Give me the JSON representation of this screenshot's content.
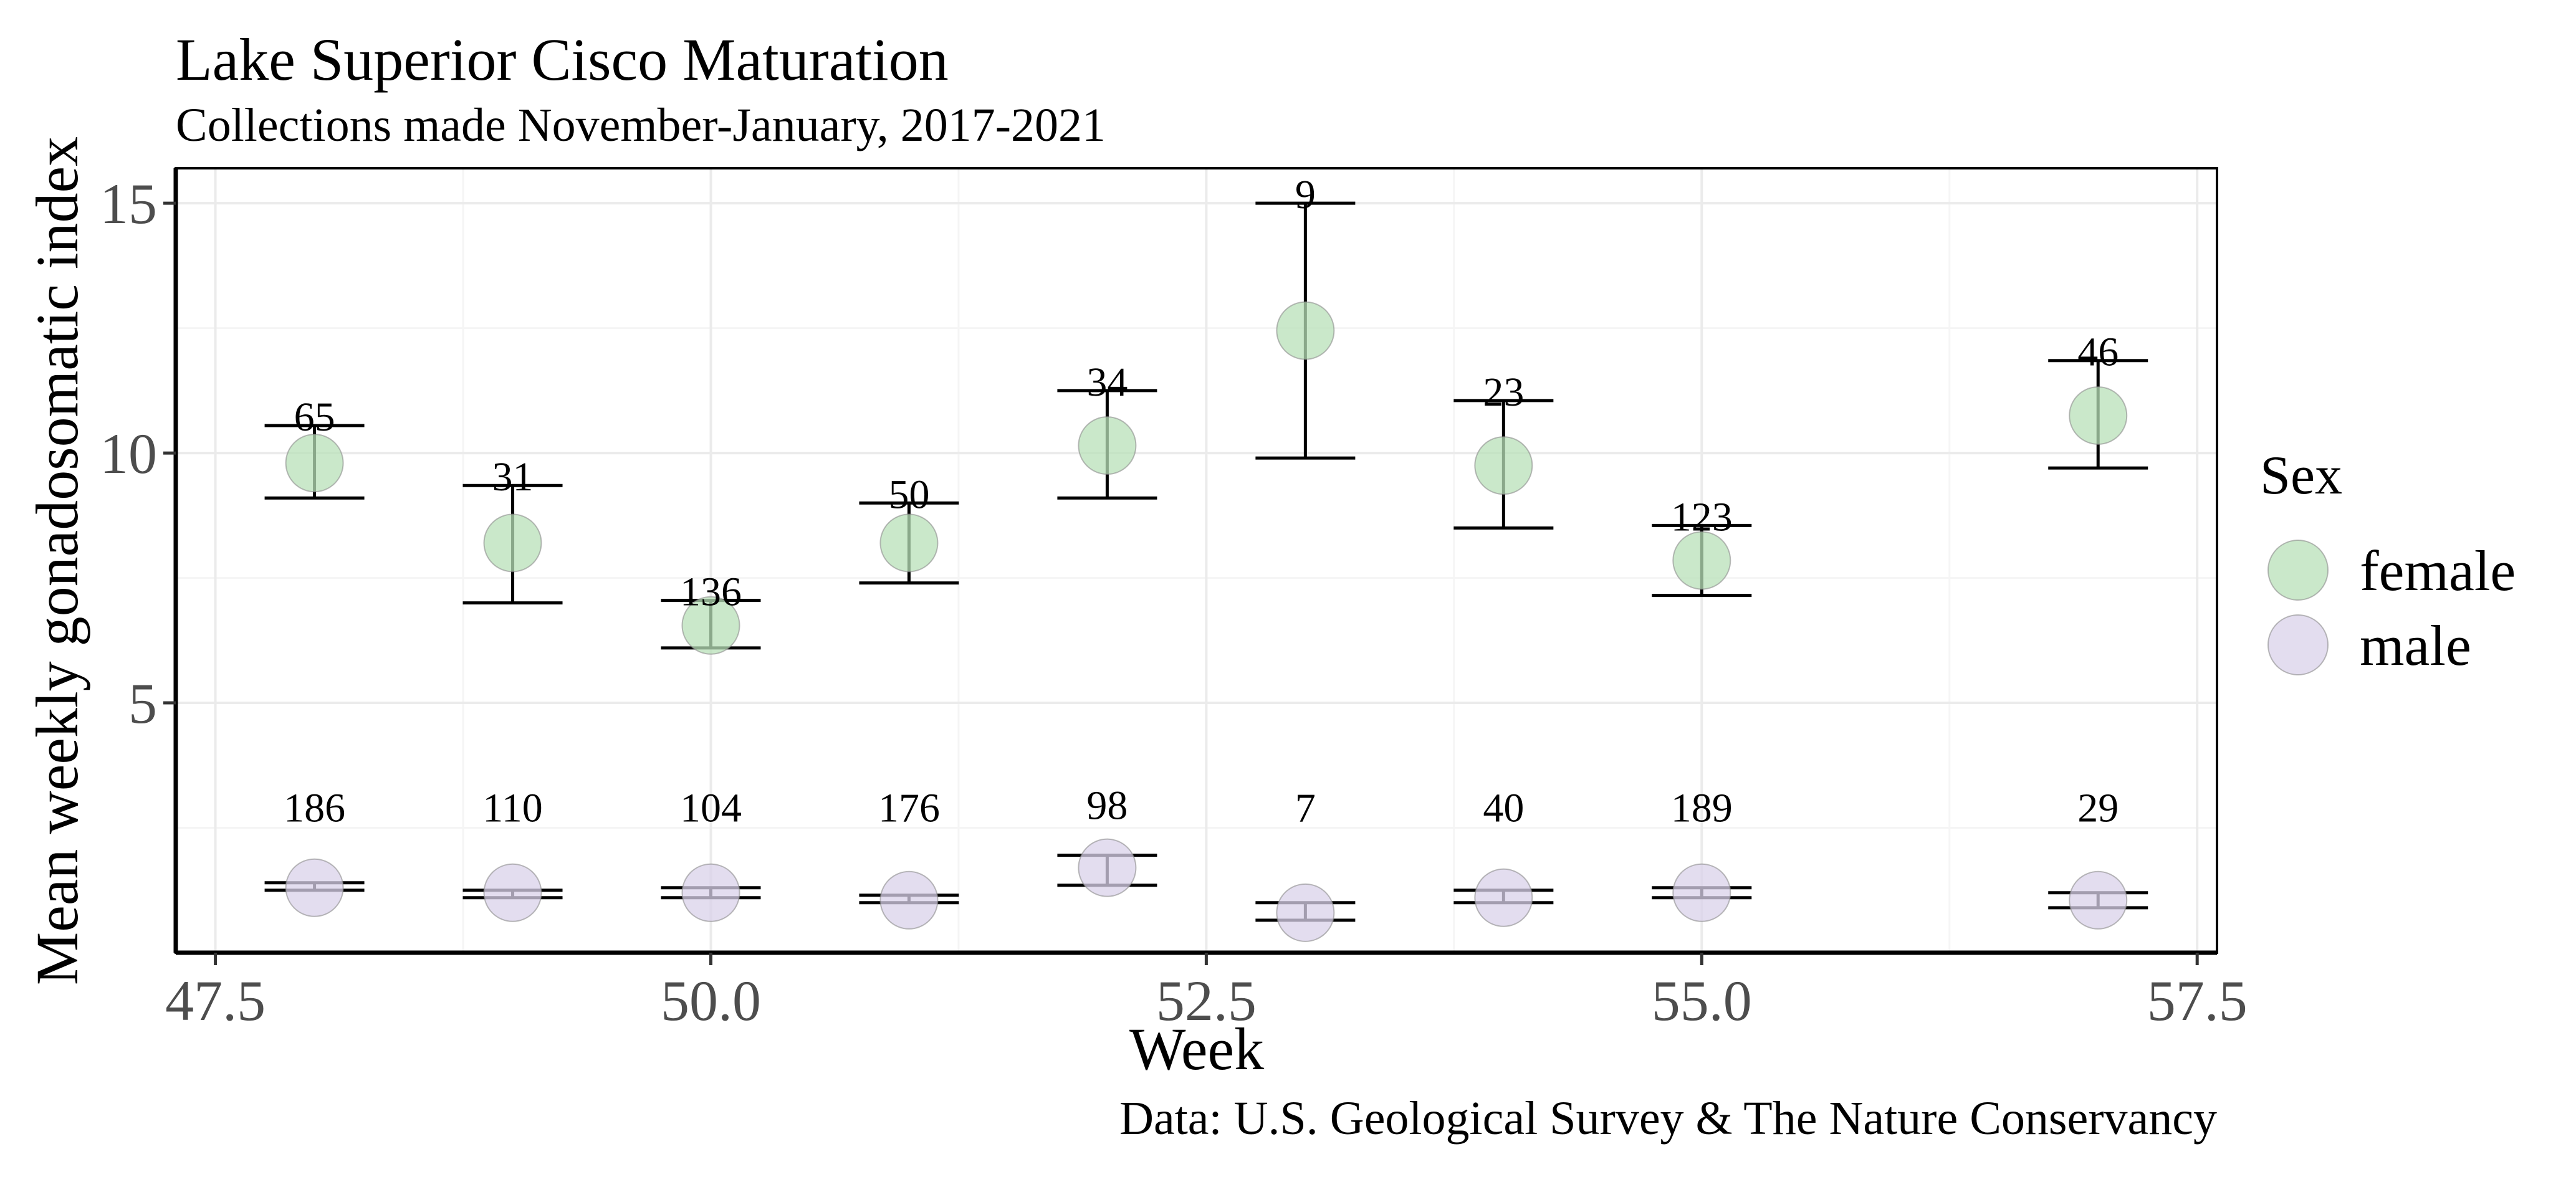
{
  "chart_data": {
    "type": "scatter",
    "title": "Lake Superior Cisco Maturation",
    "subtitle": "Collections made November-January, 2017-2021",
    "xlabel": "Week",
    "ylabel": "Mean weekly gonadosomatic index",
    "caption": "Data: U.S. Geological Survey & The Nature Conservancy",
    "xlim": [
      47.3,
      57.6
    ],
    "ylim": [
      0,
      15.7
    ],
    "x_ticks": [
      47.5,
      50.0,
      52.5,
      55.0,
      57.5
    ],
    "x_tick_labels": [
      "47.5",
      "50.0",
      "52.5",
      "55.0",
      "57.5"
    ],
    "y_ticks": [
      5,
      10,
      15
    ],
    "y_tick_labels": [
      "5",
      "10",
      "15"
    ],
    "grid": true,
    "legend": {
      "title": "Sex",
      "position": "right"
    },
    "series": [
      {
        "name": "female",
        "color": "#b8e0b8",
        "points": [
          {
            "x": 48,
            "y": 9.8,
            "ymin": 9.1,
            "ymax": 10.55,
            "n": "65"
          },
          {
            "x": 49,
            "y": 8.2,
            "ymin": 7.0,
            "ymax": 9.35,
            "n": "31"
          },
          {
            "x": 50,
            "y": 6.55,
            "ymin": 6.1,
            "ymax": 7.05,
            "n": "136"
          },
          {
            "x": 51,
            "y": 8.2,
            "ymin": 7.4,
            "ymax": 9.0,
            "n": "50"
          },
          {
            "x": 52,
            "y": 10.15,
            "ymin": 9.1,
            "ymax": 11.25,
            "n": "34"
          },
          {
            "x": 53,
            "y": 12.45,
            "ymin": 9.9,
            "ymax": 15.0,
            "n": "9"
          },
          {
            "x": 54,
            "y": 9.75,
            "ymin": 8.5,
            "ymax": 11.05,
            "n": "23"
          },
          {
            "x": 55,
            "y": 7.85,
            "ymin": 7.15,
            "ymax": 8.55,
            "n": "123"
          },
          {
            "x": 57,
            "y": 10.75,
            "ymin": 9.7,
            "ymax": 11.85,
            "n": "46"
          }
        ]
      },
      {
        "name": "male",
        "color": "#d9d1ea",
        "points": [
          {
            "x": 48,
            "y": 1.3,
            "ymin": 1.25,
            "ymax": 1.4,
            "n": "186"
          },
          {
            "x": 49,
            "y": 1.2,
            "ymin": 1.1,
            "ymax": 1.25,
            "n": "110"
          },
          {
            "x": 50,
            "y": 1.2,
            "ymin": 1.1,
            "ymax": 1.3,
            "n": "104"
          },
          {
            "x": 51,
            "y": 1.05,
            "ymin": 1.0,
            "ymax": 1.15,
            "n": "176"
          },
          {
            "x": 52,
            "y": 1.7,
            "ymin": 1.35,
            "ymax": 1.95,
            "n": "98"
          },
          {
            "x": 53,
            "y": 0.8,
            "ymin": 0.65,
            "ymax": 1.0,
            "n": "7"
          },
          {
            "x": 54,
            "y": 1.1,
            "ymin": 1.0,
            "ymax": 1.25,
            "n": "40"
          },
          {
            "x": 55,
            "y": 1.2,
            "ymin": 1.1,
            "ymax": 1.3,
            "n": "189"
          },
          {
            "x": 57,
            "y": 1.05,
            "ymin": 0.9,
            "ymax": 1.2,
            "n": "29"
          }
        ]
      }
    ]
  }
}
